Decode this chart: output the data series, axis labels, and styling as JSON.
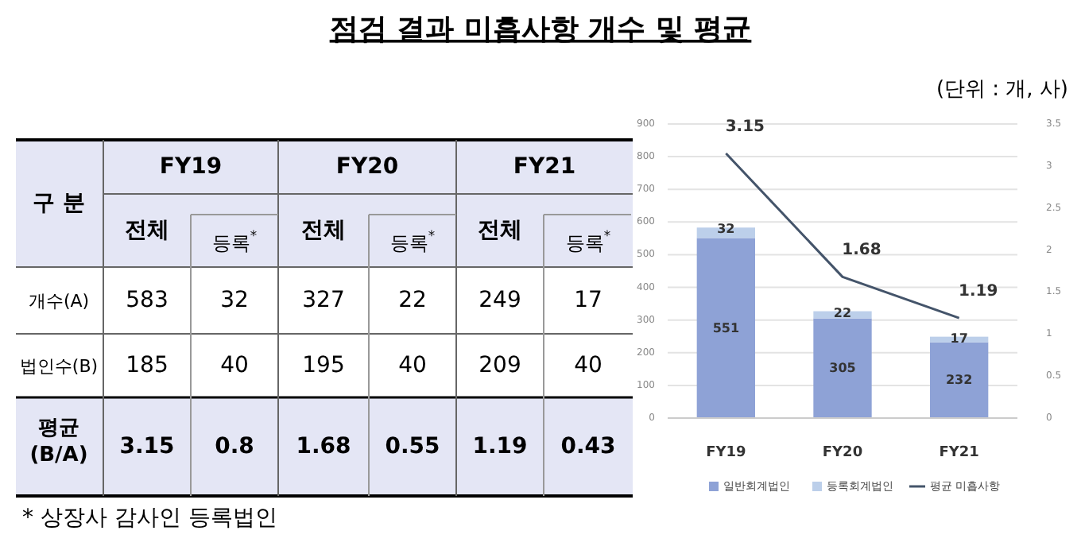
{
  "chart_data": [
    {
      "type": "other",
      "title": "점검 결과 미흡사항 개수 및 평균",
      "annotations": [
        "구 분",
        "FY19",
        "FY20",
        "FY21",
        "전체",
        "등록$^{*}$",
        "전체",
        "등록$^{*}$",
        "전체",
        "등록$^{*}$",
        "개수(A)",
        "583",
        "32",
        "327",
        "22",
        "249",
        "17",
        "법인수(B)",
        "185",
        "40",
        "195",
        "40",
        "209",
        "40",
        "평균 (B/A)",
        "3.15",
        "0.8",
        "1.68",
        "0.55",
        "1.19",
        "0.43",
        "* 상장사 감사인 등록법인"
      ]
    },
    {
      "type": "bar",
      "stacked": true,
      "categories": [
        "FY19",
        "FY20",
        "FY21"
      ],
      "series": [
        {
          "name": "일반회계법인",
          "color": "#8ea2d6",
          "values": [
            551,
            305,
            232
          ]
        },
        {
          "name": "등록회계법인",
          "color": "#bccfea",
          "values": [
            32,
            22,
            17
          ]
        },
        {
          "name": "평균 미흡사항",
          "type": "line",
          "axis": "y2",
          "color": "#44546a",
          "values": [
            3.15,
            1.68,
            1.19
          ]
        }
      ],
      "ylim": [
        0,
        900
      ],
      "yticks": [
        0,
        100,
        200,
        300,
        400,
        500,
        600,
        700,
        800,
        900
      ],
      "y2lim": [
        0,
        3.5
      ],
      "y2ticks": [
        0,
        0.5,
        1,
        1.5,
        2,
        2.5,
        3,
        3.5
      ],
      "grid": "y",
      "legend": "bottom",
      "data_labels": true,
      "annotations": [
        "(단위 : 개, 사)"
      ]
    }
  ]
}
